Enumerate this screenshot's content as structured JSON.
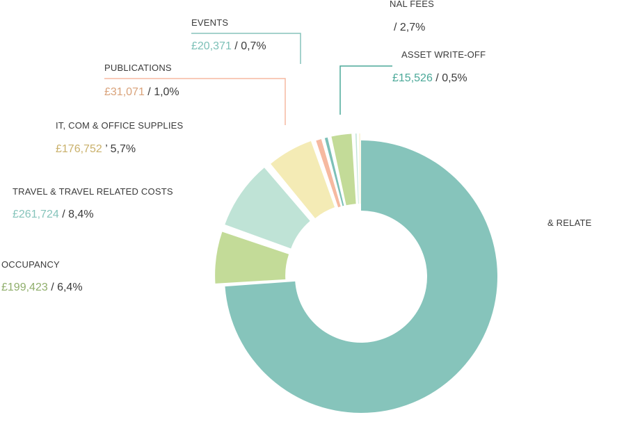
{
  "chart_data": {
    "type": "pie",
    "currency": "£",
    "slices": [
      {
        "label": "& RELATE",
        "amount": "",
        "percent": "",
        "value": 72.6,
        "color": "#86c4bb"
      },
      {
        "label": "OCCUPANCY",
        "amount": "£199,423",
        "percent": "6,4%",
        "value": 6.4,
        "color": "#c3db98",
        "amount_color": "#8fae6b"
      },
      {
        "label": "TRAVEL & TRAVEL RELATED COSTS",
        "amount": "£26​1,724",
        "percent": "8,4%",
        "value": 8.4,
        "color": "#bfe3d6",
        "amount_color": "#86c4bb"
      },
      {
        "label": "IT, COM   & OFFICE SUPPLIES",
        "amount": "£176,752",
        "percent": "5,7%",
        "value": 5.7,
        "color": "#f4ebb5",
        "amount_color": "#c9b06a"
      },
      {
        "label": "PUBLICATIONS",
        "amount": "£31,071",
        "percent": "1,0%",
        "value": 1.0,
        "color": "#f6b9a0",
        "amount_color": "#d9a27a"
      },
      {
        "label": "EVENTS",
        "amount": "£20,371",
        "percent": "0,7%",
        "value": 0.7,
        "color": "#7cc0b7",
        "amount_color": "#7cc0b7"
      },
      {
        "label": "NAL FEES",
        "amount": "",
        "percent": "2,7%",
        "value": 2.7,
        "color": "#c3db98",
        "amount_color": "#7cc0b7"
      },
      {
        "label": "ASSET WRITE-OFF",
        "amount": "£15,526",
        "percent": "0,5%",
        "value": 0.5,
        "color": "#bfe3d6",
        "amount_color": "#4aa898"
      },
      {
        "label": "",
        "amount": "",
        "percent": "",
        "value": 0.3,
        "color": "#f4ebb5"
      }
    ]
  }
}
